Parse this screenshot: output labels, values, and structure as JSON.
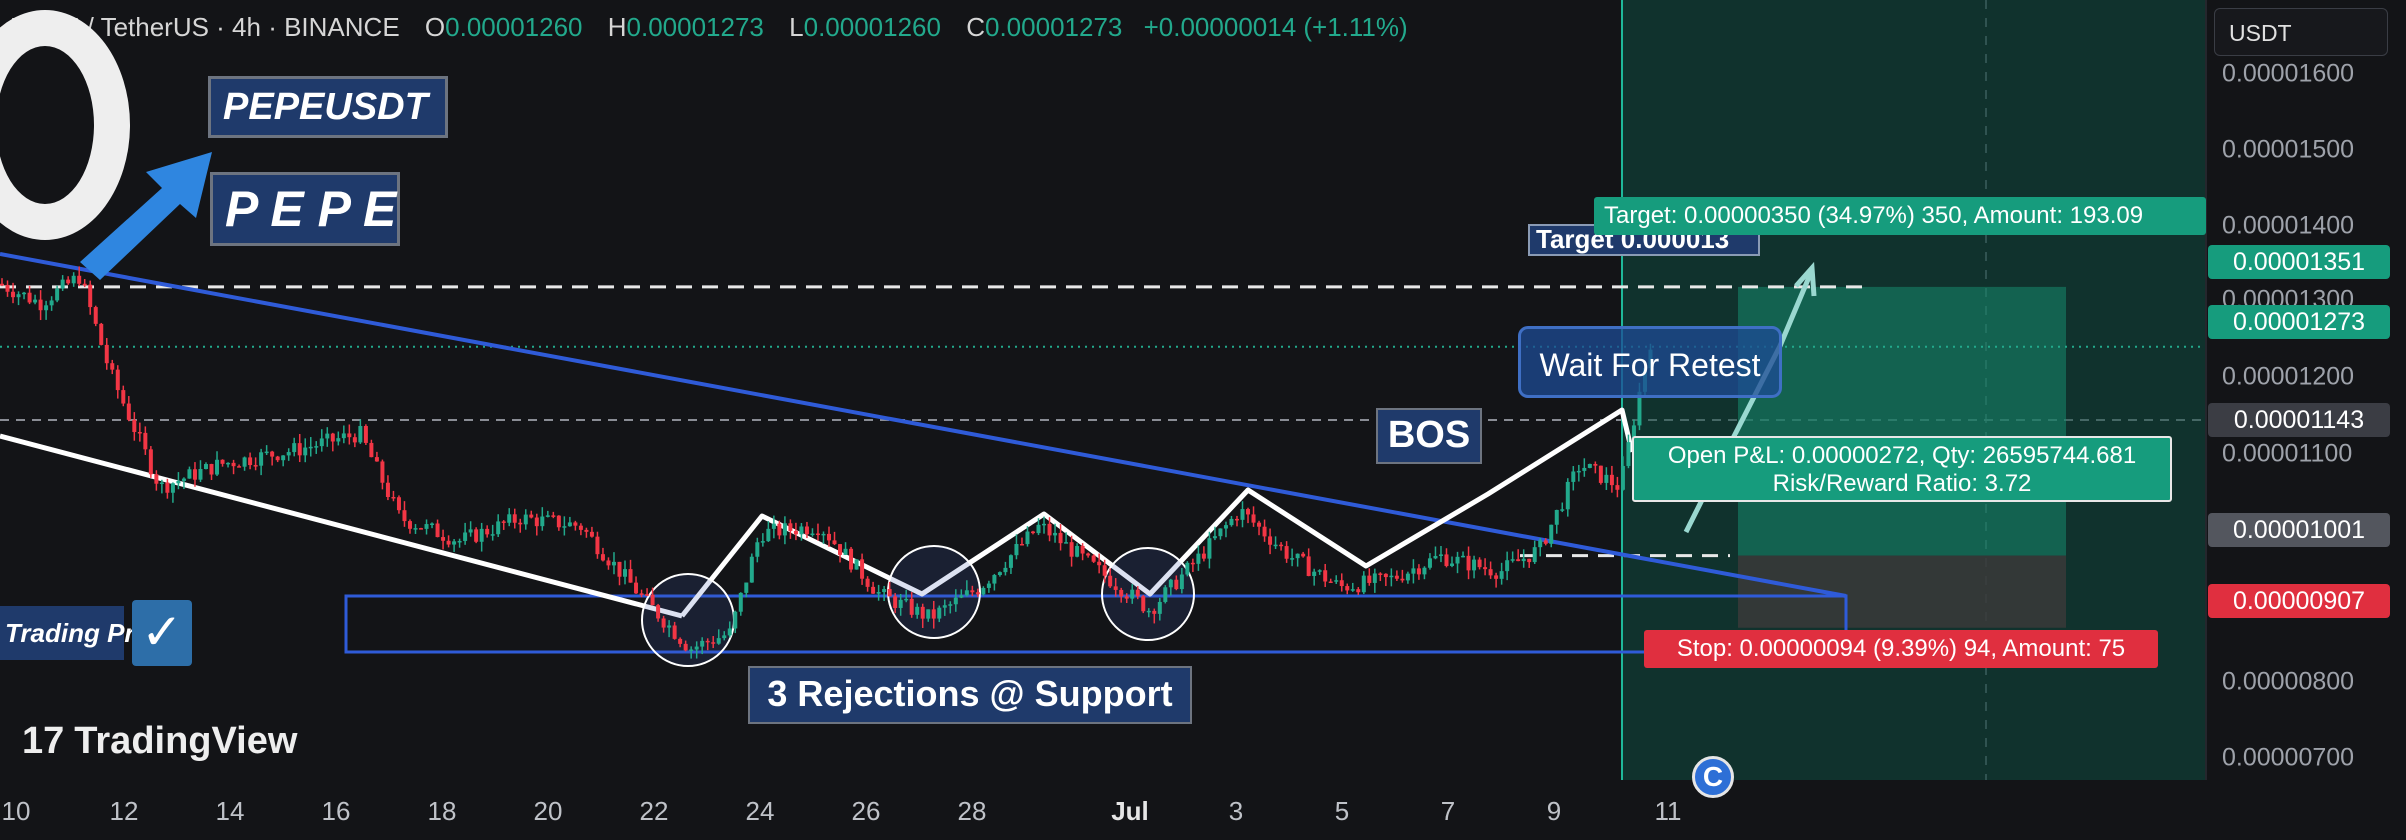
{
  "header": {
    "symbol": "PEPE / TetherUS · 4h · BINANCE",
    "o_key": "O",
    "o": "0.00001260",
    "h_key": "H",
    "h": "0.00001273",
    "l_key": "L",
    "l": "0.00001260",
    "c_key": "C",
    "c": "0.00001273",
    "change": "+0.00000014 (+1.11%)"
  },
  "currency_button": "USDT",
  "price_tags": {
    "target": "0.00001351",
    "last": "0.00001273",
    "mid": "0.00001143",
    "entry": "0.00001001",
    "stop": "0.00000907"
  },
  "annotations": {
    "symbol_badge": "PEPEUSDT",
    "name_badge": "P E P E",
    "target_label": "Target 0.000013",
    "bos": "BOS",
    "wait": "Wait For Retest",
    "support": "3 Rejections @ Support",
    "trading_pro": "Trading Pro"
  },
  "position": {
    "target_text": "Target: 0.00000350 (34.97%) 350, Amount: 193.09",
    "pnl_text": "Open P&L: 0.00000272, Qty: 26595744.681",
    "rr_text": "Risk/Reward Ratio: 3.72",
    "stop_text": "Stop: 0.00000094 (9.39%) 94, Amount: 75"
  },
  "branding": {
    "tradingview": "TradingView",
    "tv_mark": "17"
  },
  "colors": {
    "background": "#131417",
    "up": "#22a98c",
    "down": "#f23645",
    "trendline": "#2f5bd8",
    "profit_zone": "#0f4a3f",
    "loss_zone": "#3a3a3a",
    "badge": "#1f3a6b"
  },
  "chart_data": {
    "type": "candlestick",
    "symbol": "PEPEUSDT",
    "timeframe": "4h",
    "exchange": "BINANCE",
    "ylim": [
      6.8e-06,
      1.67e-05
    ],
    "y_ticks": [
      "0.00001600",
      "0.00001500",
      "0.00001400",
      "0.00001300",
      "0.00001200",
      "0.00001100",
      "0.00000800",
      "0.00000700"
    ],
    "x_ticks": [
      "10",
      "12",
      "14",
      "16",
      "18",
      "20",
      "22",
      "24",
      "26",
      "28",
      "Jul",
      "3",
      "5",
      "7",
      "9",
      "11"
    ],
    "price_path": [
      [
        0,
        1.355e-05
      ],
      [
        40,
        1.33e-05
      ],
      [
        80,
        1.365e-05
      ],
      [
        110,
        1.24e-05
      ],
      [
        160,
        1.09e-05
      ],
      [
        220,
        1.12e-05
      ],
      [
        300,
        1.14e-05
      ],
      [
        360,
        1.16e-05
      ],
      [
        400,
        1.05e-05
      ],
      [
        460,
        1.02e-05
      ],
      [
        520,
        1.05e-05
      ],
      [
        580,
        1.04e-05
      ],
      [
        640,
        9.5e-06
      ],
      [
        690,
        8.8e-06
      ],
      [
        730,
        9e-06
      ],
      [
        760,
        1.03e-05
      ],
      [
        820,
        1.04e-05
      ],
      [
        880,
        9.5e-06
      ],
      [
        930,
        9.2e-06
      ],
      [
        980,
        9.6e-06
      ],
      [
        1040,
        1.04e-05
      ],
      [
        1100,
        9.8e-06
      ],
      [
        1150,
        9.3e-06
      ],
      [
        1200,
        1e-05
      ],
      [
        1240,
        1.06e-05
      ],
      [
        1290,
        1e-05
      ],
      [
        1340,
        9.6e-06
      ],
      [
        1390,
        9.7e-06
      ],
      [
        1440,
        1e-05
      ],
      [
        1500,
        9.8e-06
      ],
      [
        1540,
        1.01e-05
      ],
      [
        1580,
        1.12e-05
      ],
      [
        1620,
        1.09e-05
      ],
      [
        1650,
        1.28e-05
      ]
    ],
    "last_price": 1.273e-05,
    "target_price": 1.351e-05,
    "entry_price": 1.001e-05,
    "stop_price": 9.07e-06,
    "position_type": "long",
    "risk_reward": 3.72
  }
}
